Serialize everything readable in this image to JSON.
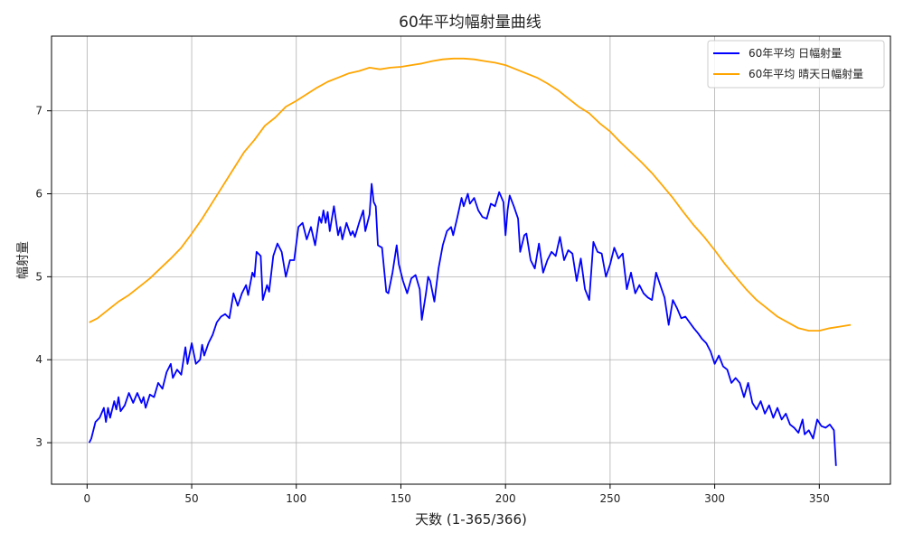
{
  "chart_data": {
    "type": "line",
    "title": "60年平均幅射量曲线",
    "xlabel": "天数 (1-365/366)",
    "ylabel": "幅射量",
    "xlim": [
      -17,
      384
    ],
    "ylim": [
      2.5,
      7.9
    ],
    "xticks": [
      0,
      50,
      100,
      150,
      200,
      250,
      300,
      350
    ],
    "yticks": [
      3,
      4,
      5,
      6,
      7
    ],
    "grid": true,
    "legend": "top-right",
    "series": [
      {
        "name": "60年平均 日幅射量",
        "color": "#0000ff",
        "points": [
          [
            1,
            3.0
          ],
          [
            2,
            3.05
          ],
          [
            4,
            3.25
          ],
          [
            6,
            3.3
          ],
          [
            8,
            3.42
          ],
          [
            9,
            3.25
          ],
          [
            10,
            3.42
          ],
          [
            11,
            3.3
          ],
          [
            13,
            3.5
          ],
          [
            14,
            3.4
          ],
          [
            15,
            3.55
          ],
          [
            16,
            3.38
          ],
          [
            18,
            3.45
          ],
          [
            20,
            3.6
          ],
          [
            22,
            3.48
          ],
          [
            24,
            3.6
          ],
          [
            26,
            3.48
          ],
          [
            27,
            3.55
          ],
          [
            28,
            3.42
          ],
          [
            30,
            3.58
          ],
          [
            32,
            3.55
          ],
          [
            34,
            3.72
          ],
          [
            36,
            3.65
          ],
          [
            38,
            3.85
          ],
          [
            40,
            3.95
          ],
          [
            41,
            3.78
          ],
          [
            43,
            3.88
          ],
          [
            45,
            3.82
          ],
          [
            47,
            4.15
          ],
          [
            48,
            3.95
          ],
          [
            50,
            4.2
          ],
          [
            52,
            3.95
          ],
          [
            54,
            4.0
          ],
          [
            55,
            4.18
          ],
          [
            56,
            4.05
          ],
          [
            58,
            4.2
          ],
          [
            60,
            4.3
          ],
          [
            62,
            4.45
          ],
          [
            64,
            4.52
          ],
          [
            66,
            4.55
          ],
          [
            68,
            4.5
          ],
          [
            70,
            4.8
          ],
          [
            72,
            4.65
          ],
          [
            74,
            4.8
          ],
          [
            76,
            4.9
          ],
          [
            77,
            4.78
          ],
          [
            79,
            5.05
          ],
          [
            80,
            5.0
          ],
          [
            81,
            5.3
          ],
          [
            83,
            5.25
          ],
          [
            84,
            4.72
          ],
          [
            86,
            4.9
          ],
          [
            87,
            4.82
          ],
          [
            89,
            5.25
          ],
          [
            91,
            5.4
          ],
          [
            93,
            5.3
          ],
          [
            95,
            5.0
          ],
          [
            97,
            5.2
          ],
          [
            99,
            5.2
          ],
          [
            101,
            5.6
          ],
          [
            103,
            5.65
          ],
          [
            105,
            5.45
          ],
          [
            107,
            5.6
          ],
          [
            109,
            5.38
          ],
          [
            111,
            5.72
          ],
          [
            112,
            5.65
          ],
          [
            113,
            5.8
          ],
          [
            114,
            5.65
          ],
          [
            115,
            5.78
          ],
          [
            116,
            5.55
          ],
          [
            118,
            5.85
          ],
          [
            120,
            5.5
          ],
          [
            121,
            5.6
          ],
          [
            122,
            5.45
          ],
          [
            124,
            5.65
          ],
          [
            126,
            5.5
          ],
          [
            127,
            5.55
          ],
          [
            128,
            5.48
          ],
          [
            130,
            5.65
          ],
          [
            132,
            5.8
          ],
          [
            133,
            5.55
          ],
          [
            135,
            5.75
          ],
          [
            136,
            6.12
          ],
          [
            137,
            5.9
          ],
          [
            138,
            5.85
          ],
          [
            139,
            5.38
          ],
          [
            141,
            5.35
          ],
          [
            143,
            4.82
          ],
          [
            144,
            4.8
          ],
          [
            146,
            5.05
          ],
          [
            148,
            5.38
          ],
          [
            149,
            5.15
          ],
          [
            151,
            4.95
          ],
          [
            153,
            4.8
          ],
          [
            155,
            4.98
          ],
          [
            157,
            5.02
          ],
          [
            159,
            4.85
          ],
          [
            160,
            4.48
          ],
          [
            162,
            4.8
          ],
          [
            163,
            5.0
          ],
          [
            164,
            4.95
          ],
          [
            166,
            4.7
          ],
          [
            168,
            5.1
          ],
          [
            170,
            5.38
          ],
          [
            172,
            5.55
          ],
          [
            174,
            5.6
          ],
          [
            175,
            5.5
          ],
          [
            177,
            5.72
          ],
          [
            179,
            5.95
          ],
          [
            180,
            5.85
          ],
          [
            182,
            6.0
          ],
          [
            183,
            5.88
          ],
          [
            185,
            5.95
          ],
          [
            187,
            5.8
          ],
          [
            189,
            5.72
          ],
          [
            191,
            5.7
          ],
          [
            193,
            5.88
          ],
          [
            195,
            5.85
          ],
          [
            197,
            6.02
          ],
          [
            199,
            5.9
          ],
          [
            200,
            5.5
          ],
          [
            201,
            5.8
          ],
          [
            202,
            5.98
          ],
          [
            204,
            5.85
          ],
          [
            206,
            5.7
          ],
          [
            207,
            5.3
          ],
          [
            209,
            5.5
          ],
          [
            210,
            5.52
          ],
          [
            212,
            5.2
          ],
          [
            214,
            5.1
          ],
          [
            216,
            5.4
          ],
          [
            218,
            5.05
          ],
          [
            220,
            5.2
          ],
          [
            222,
            5.3
          ],
          [
            224,
            5.25
          ],
          [
            226,
            5.48
          ],
          [
            228,
            5.2
          ],
          [
            230,
            5.32
          ],
          [
            232,
            5.28
          ],
          [
            234,
            4.95
          ],
          [
            236,
            5.22
          ],
          [
            238,
            4.85
          ],
          [
            240,
            4.72
          ],
          [
            242,
            5.42
          ],
          [
            244,
            5.3
          ],
          [
            246,
            5.28
          ],
          [
            248,
            5.0
          ],
          [
            250,
            5.15
          ],
          [
            252,
            5.35
          ],
          [
            254,
            5.22
          ],
          [
            256,
            5.28
          ],
          [
            258,
            4.85
          ],
          [
            260,
            5.05
          ],
          [
            262,
            4.8
          ],
          [
            264,
            4.9
          ],
          [
            266,
            4.8
          ],
          [
            268,
            4.75
          ],
          [
            270,
            4.72
          ],
          [
            272,
            5.05
          ],
          [
            274,
            4.9
          ],
          [
            276,
            4.75
          ],
          [
            278,
            4.42
          ],
          [
            280,
            4.72
          ],
          [
            282,
            4.62
          ],
          [
            284,
            4.5
          ],
          [
            286,
            4.52
          ],
          [
            288,
            4.45
          ],
          [
            290,
            4.38
          ],
          [
            292,
            4.32
          ],
          [
            294,
            4.25
          ],
          [
            296,
            4.2
          ],
          [
            298,
            4.1
          ],
          [
            300,
            3.95
          ],
          [
            302,
            4.05
          ],
          [
            304,
            3.92
          ],
          [
            306,
            3.88
          ],
          [
            308,
            3.72
          ],
          [
            310,
            3.78
          ],
          [
            312,
            3.72
          ],
          [
            314,
            3.55
          ],
          [
            316,
            3.72
          ],
          [
            318,
            3.48
          ],
          [
            320,
            3.4
          ],
          [
            322,
            3.5
          ],
          [
            324,
            3.35
          ],
          [
            326,
            3.45
          ],
          [
            328,
            3.3
          ],
          [
            330,
            3.42
          ],
          [
            332,
            3.28
          ],
          [
            334,
            3.35
          ],
          [
            336,
            3.22
          ],
          [
            338,
            3.18
          ],
          [
            340,
            3.12
          ],
          [
            342,
            3.28
          ],
          [
            343,
            3.1
          ],
          [
            345,
            3.15
          ],
          [
            347,
            3.05
          ],
          [
            349,
            3.28
          ],
          [
            351,
            3.2
          ],
          [
            353,
            3.18
          ],
          [
            355,
            3.22
          ],
          [
            357,
            3.15
          ],
          [
            358,
            2.72
          ]
        ]
      },
      {
        "name": "60年平均 晴天日幅射量",
        "color": "#ffa500",
        "points": [
          [
            1,
            4.45
          ],
          [
            5,
            4.5
          ],
          [
            10,
            4.6
          ],
          [
            15,
            4.7
          ],
          [
            20,
            4.78
          ],
          [
            25,
            4.88
          ],
          [
            30,
            4.98
          ],
          [
            35,
            5.1
          ],
          [
            40,
            5.22
          ],
          [
            45,
            5.35
          ],
          [
            50,
            5.52
          ],
          [
            55,
            5.7
          ],
          [
            60,
            5.9
          ],
          [
            65,
            6.1
          ],
          [
            70,
            6.3
          ],
          [
            75,
            6.5
          ],
          [
            80,
            6.65
          ],
          [
            85,
            6.82
          ],
          [
            90,
            6.92
          ],
          [
            95,
            7.05
          ],
          [
            100,
            7.12
          ],
          [
            105,
            7.2
          ],
          [
            110,
            7.28
          ],
          [
            115,
            7.35
          ],
          [
            120,
            7.4
          ],
          [
            125,
            7.45
          ],
          [
            130,
            7.48
          ],
          [
            135,
            7.52
          ],
          [
            140,
            7.5
          ],
          [
            145,
            7.52
          ],
          [
            150,
            7.53
          ],
          [
            155,
            7.55
          ],
          [
            160,
            7.57
          ],
          [
            165,
            7.6
          ],
          [
            170,
            7.62
          ],
          [
            175,
            7.63
          ],
          [
            180,
            7.63
          ],
          [
            185,
            7.62
          ],
          [
            190,
            7.6
          ],
          [
            195,
            7.58
          ],
          [
            200,
            7.55
          ],
          [
            205,
            7.5
          ],
          [
            210,
            7.45
          ],
          [
            215,
            7.4
          ],
          [
            220,
            7.33
          ],
          [
            225,
            7.25
          ],
          [
            230,
            7.15
          ],
          [
            235,
            7.05
          ],
          [
            240,
            6.97
          ],
          [
            245,
            6.85
          ],
          [
            250,
            6.75
          ],
          [
            255,
            6.62
          ],
          [
            260,
            6.5
          ],
          [
            265,
            6.38
          ],
          [
            270,
            6.25
          ],
          [
            275,
            6.1
          ],
          [
            280,
            5.95
          ],
          [
            285,
            5.78
          ],
          [
            290,
            5.62
          ],
          [
            295,
            5.48
          ],
          [
            300,
            5.32
          ],
          [
            305,
            5.15
          ],
          [
            310,
            5.0
          ],
          [
            315,
            4.85
          ],
          [
            320,
            4.72
          ],
          [
            325,
            4.62
          ],
          [
            330,
            4.52
          ],
          [
            335,
            4.45
          ],
          [
            340,
            4.38
          ],
          [
            345,
            4.35
          ],
          [
            350,
            4.35
          ],
          [
            355,
            4.38
          ],
          [
            360,
            4.4
          ],
          [
            365,
            4.42
          ]
        ]
      }
    ]
  }
}
